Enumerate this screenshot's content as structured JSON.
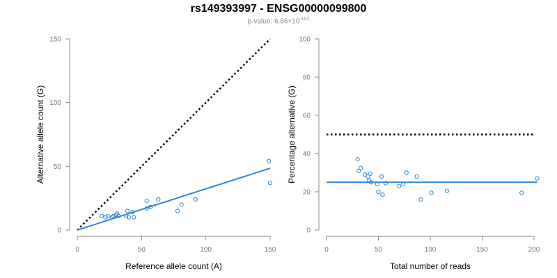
{
  "title": "rs149393997 - ENSG00000099800",
  "subtitle": {
    "prefix": "p-value: ",
    "mantissa": "6.86",
    "times": "×",
    "base": "10",
    "exponent": "-102"
  },
  "colors": {
    "points": "#2a86d8",
    "fit_line": "#2a86d8",
    "reference_line": "#000000",
    "axis": "#888888",
    "tick_text": "#777777"
  },
  "chart_data": [
    {
      "type": "scatter",
      "title": "",
      "xlabel": "Reference allele count (A)",
      "ylabel": "Alternative allele count (G)",
      "xlim": [
        0,
        150
      ],
      "ylim": [
        0,
        150
      ],
      "xticks": [
        0,
        50,
        100,
        150
      ],
      "yticks": [
        0,
        50,
        100,
        150
      ],
      "x_tick_labels": [
        "0",
        "50",
        "100",
        "150"
      ],
      "y_tick_labels": [
        "0",
        "50",
        "100",
        "150"
      ],
      "grid": false,
      "points": [
        {
          "x": 19,
          "y": 11
        },
        {
          "x": 22,
          "y": 10
        },
        {
          "x": 24,
          "y": 11
        },
        {
          "x": 27,
          "y": 10
        },
        {
          "x": 28,
          "y": 11
        },
        {
          "x": 30,
          "y": 12
        },
        {
          "x": 31,
          "y": 13
        },
        {
          "x": 32,
          "y": 11
        },
        {
          "x": 38,
          "y": 11
        },
        {
          "x": 39,
          "y": 15
        },
        {
          "x": 40,
          "y": 10
        },
        {
          "x": 43,
          "y": 14
        },
        {
          "x": 44,
          "y": 10
        },
        {
          "x": 54,
          "y": 17
        },
        {
          "x": 54,
          "y": 23
        },
        {
          "x": 57,
          "y": 18
        },
        {
          "x": 63,
          "y": 24
        },
        {
          "x": 78,
          "y": 15
        },
        {
          "x": 81,
          "y": 20
        },
        {
          "x": 92,
          "y": 24
        },
        {
          "x": 149,
          "y": 54
        },
        {
          "x": 150,
          "y": 37
        }
      ],
      "fit_line": {
        "x": [
          0,
          150
        ],
        "y": [
          0,
          48.5
        ]
      },
      "reference_line": {
        "x": [
          0,
          150
        ],
        "y": [
          0,
          150
        ],
        "style": "dotted"
      }
    },
    {
      "type": "scatter",
      "title": "",
      "xlabel": "Total number of reads",
      "ylabel": "Percentage alternative (G)",
      "xlim": [
        0,
        200
      ],
      "ylim": [
        0,
        100
      ],
      "xticks": [
        0,
        50,
        100,
        150,
        200
      ],
      "yticks": [
        0,
        20,
        40,
        60,
        80,
        100
      ],
      "x_tick_labels": [
        "0",
        "50",
        "100",
        "150",
        "200"
      ],
      "y_tick_labels": [
        "0",
        "20",
        "40",
        "60",
        "80",
        "100"
      ],
      "grid": false,
      "points": [
        {
          "x": 30,
          "y": 37
        },
        {
          "x": 31,
          "y": 31
        },
        {
          "x": 33,
          "y": 32.5
        },
        {
          "x": 37,
          "y": 29
        },
        {
          "x": 40,
          "y": 28
        },
        {
          "x": 41,
          "y": 26
        },
        {
          "x": 42,
          "y": 29.5
        },
        {
          "x": 43,
          "y": 25
        },
        {
          "x": 49,
          "y": 24
        },
        {
          "x": 50,
          "y": 20
        },
        {
          "x": 53,
          "y": 28
        },
        {
          "x": 54,
          "y": 18.5
        },
        {
          "x": 57,
          "y": 24.5
        },
        {
          "x": 70,
          "y": 23
        },
        {
          "x": 74,
          "y": 24
        },
        {
          "x": 77,
          "y": 30
        },
        {
          "x": 87,
          "y": 28
        },
        {
          "x": 91,
          "y": 16
        },
        {
          "x": 101,
          "y": 19.5
        },
        {
          "x": 116,
          "y": 20.5
        },
        {
          "x": 188,
          "y": 19.5
        },
        {
          "x": 203,
          "y": 27
        }
      ],
      "fit_line": {
        "x": [
          0,
          203
        ],
        "y": [
          25,
          25
        ]
      },
      "reference_line": {
        "x": [
          0,
          200
        ],
        "y": [
          50,
          50
        ],
        "style": "dotted"
      }
    }
  ]
}
